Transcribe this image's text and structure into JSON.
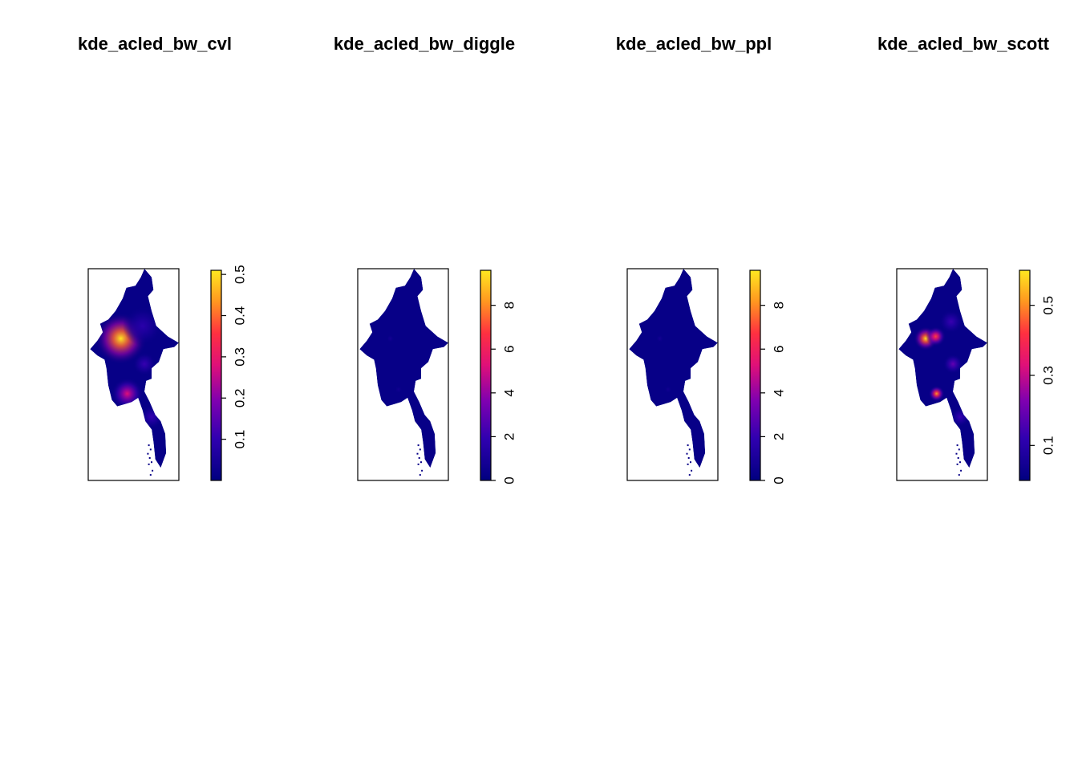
{
  "chart_data": [
    {
      "type": "heatmap",
      "title": "kde_acled_bw_cvl",
      "colorbar": {
        "min": 0,
        "max": 0.51,
        "ticks": [
          0.1,
          0.2,
          0.3,
          0.4,
          0.5
        ]
      },
      "hotspots": [
        {
          "x": 0.36,
          "y": 0.33,
          "value": 0.51,
          "spread": 0.13
        },
        {
          "x": 0.43,
          "y": 0.59,
          "value": 0.27,
          "spread": 0.08
        },
        {
          "x": 0.62,
          "y": 0.45,
          "value": 0.1,
          "spread": 0.06
        },
        {
          "x": 0.6,
          "y": 0.27,
          "value": 0.08,
          "spread": 0.1
        },
        {
          "x": 0.7,
          "y": 0.7,
          "value": 0.1,
          "spread": 0.06
        }
      ]
    },
    {
      "type": "heatmap",
      "title": "kde_acled_bw_diggle",
      "colorbar": {
        "min": 0,
        "max": 9.6,
        "ticks": [
          0,
          2,
          4,
          6,
          8
        ]
      },
      "hotspots": [
        {
          "x": 0.36,
          "y": 0.33,
          "value": 0.6,
          "spread": 0.02
        },
        {
          "x": 0.45,
          "y": 0.57,
          "value": 0.5,
          "spread": 0.02
        }
      ]
    },
    {
      "type": "heatmap",
      "title": "kde_acled_bw_ppl",
      "colorbar": {
        "min": 0,
        "max": 9.6,
        "ticks": [
          0,
          2,
          4,
          6,
          8
        ]
      },
      "hotspots": [
        {
          "x": 0.36,
          "y": 0.33,
          "value": 0.6,
          "spread": 0.02
        },
        {
          "x": 0.45,
          "y": 0.57,
          "value": 0.5,
          "spread": 0.02
        }
      ]
    },
    {
      "type": "heatmap",
      "title": "kde_acled_bw_scott",
      "colorbar": {
        "min": 0,
        "max": 0.6,
        "ticks": [
          0.1,
          0.3,
          0.5
        ]
      },
      "hotspots": [
        {
          "x": 0.32,
          "y": 0.33,
          "value": 0.58,
          "spread": 0.06
        },
        {
          "x": 0.43,
          "y": 0.32,
          "value": 0.42,
          "spread": 0.05
        },
        {
          "x": 0.44,
          "y": 0.59,
          "value": 0.5,
          "spread": 0.04
        },
        {
          "x": 0.62,
          "y": 0.45,
          "value": 0.18,
          "spread": 0.05
        },
        {
          "x": 0.6,
          "y": 0.25,
          "value": 0.12,
          "spread": 0.06
        },
        {
          "x": 0.7,
          "y": 0.7,
          "value": 0.12,
          "spread": 0.05
        }
      ]
    }
  ]
}
